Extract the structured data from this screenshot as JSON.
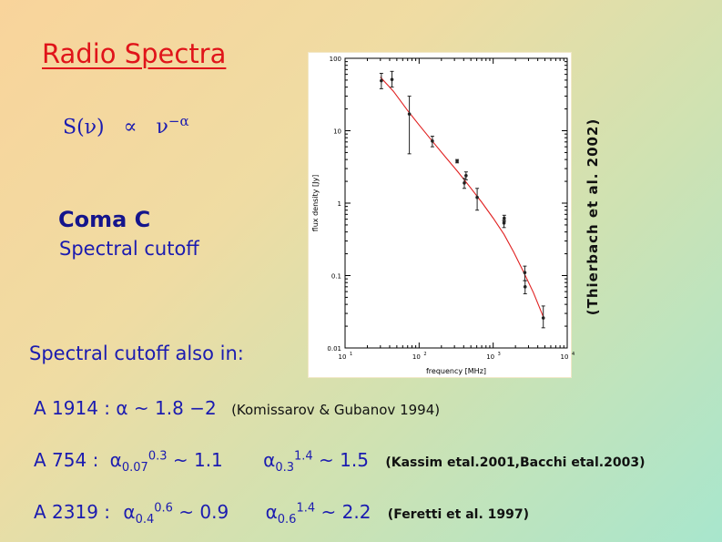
{
  "slide": {
    "title": "Radio Spectra",
    "formula_lhs": "S(ν)",
    "formula_prop": "∝",
    "formula_nu": "ν",
    "formula_exp": "−α",
    "coma_title": "Coma C",
    "coma_sub": "Spectral cutoff",
    "also_label": "Spectral cutoff also in:",
    "citation_vertical": "(Thierbach et al. 2002)"
  },
  "rows": [
    {
      "name": "A 1914",
      "sep": " : ",
      "alpha": "α",
      "approx": " ~ 1.8 −2",
      "ref": "(Komissarov & Gubanov 1994)"
    },
    {
      "name": "A 754",
      "sep": " : ",
      "a1_sub": "0.07",
      "a1_sup": "0.3",
      "a1_val": " ~  1.1",
      "a2_sub": "0.3",
      "a2_sup": "1.4",
      "a2_val": " ~ 1.5",
      "ref": "(Kassim etal.2001,Bacchi etal.2003)"
    },
    {
      "name": "A 2319",
      "sep": " : ",
      "a1_sub": "0.4",
      "a1_sup": "0.6",
      "a1_val": " ~  0.9",
      "a2_sub": "0.6",
      "a2_sup": "1.4",
      "a2_val": " ~ 2.2",
      "ref": "(Feretti et al. 1997)"
    }
  ],
  "chart_data": {
    "type": "scatter",
    "xlabel": "frequency [MHz]",
    "ylabel": "flux density [Jy]",
    "xscale": "log",
    "yscale": "log",
    "xlim": [
      10,
      10000
    ],
    "ylim": [
      0.01,
      100
    ],
    "x_ticks": [
      {
        "value": 10,
        "label": "10",
        "sup": "1"
      },
      {
        "value": 100,
        "label": "10",
        "sup": "2"
      },
      {
        "value": 1000,
        "label": "10",
        "sup": "3"
      },
      {
        "value": 10000,
        "label": "10",
        "sup": "4"
      }
    ],
    "y_ticks": [
      {
        "value": 100,
        "label": "100"
      },
      {
        "value": 10,
        "label": "10"
      },
      {
        "value": 1,
        "label": "1"
      },
      {
        "value": 0.1,
        "label": "0.1"
      },
      {
        "value": 0.01,
        "label": "0.01"
      }
    ],
    "points": [
      {
        "x": 30.9,
        "y": 49,
        "err_lo": 38,
        "err_hi": 62
      },
      {
        "x": 43,
        "y": 51,
        "err_lo": 40,
        "err_hi": 66
      },
      {
        "x": 73.8,
        "y": 17,
        "err_lo": 4.8,
        "err_hi": 30
      },
      {
        "x": 151,
        "y": 7.2,
        "err_lo": 6.0,
        "err_hi": 8.4
      },
      {
        "x": 326,
        "y": 3.8,
        "err_lo": 3.6,
        "err_hi": 4.0
      },
      {
        "x": 408,
        "y": 1.9,
        "err_lo": 1.6,
        "err_hi": 2.2
      },
      {
        "x": 430,
        "y": 2.4,
        "err_lo": 2.1,
        "err_hi": 2.7
      },
      {
        "x": 608,
        "y": 1.2,
        "err_lo": 0.8,
        "err_hi": 1.6
      },
      {
        "x": 1400,
        "y": 0.53,
        "err_lo": 0.46,
        "err_hi": 0.58
      },
      {
        "x": 1410,
        "y": 0.62,
        "err_lo": 0.56,
        "err_hi": 0.68
      },
      {
        "x": 2675,
        "y": 0.11,
        "err_lo": 0.085,
        "err_hi": 0.135
      },
      {
        "x": 2700,
        "y": 0.07,
        "err_lo": 0.056,
        "err_hi": 0.085
      },
      {
        "x": 4750,
        "y": 0.026,
        "err_lo": 0.019,
        "err_hi": 0.038
      }
    ],
    "fit_curve": {
      "x": [
        30,
        45,
        70,
        100,
        150,
        220,
        330,
        480,
        700,
        1000,
        1400,
        1900,
        2600,
        3500,
        4900
      ],
      "y": [
        55,
        35,
        19,
        12,
        7.2,
        4.5,
        2.75,
        1.7,
        1.03,
        0.62,
        0.37,
        0.21,
        0.11,
        0.058,
        0.025
      ]
    },
    "colors": {
      "points": "#222222",
      "fit": "#e02020",
      "axis": "#000000"
    }
  }
}
